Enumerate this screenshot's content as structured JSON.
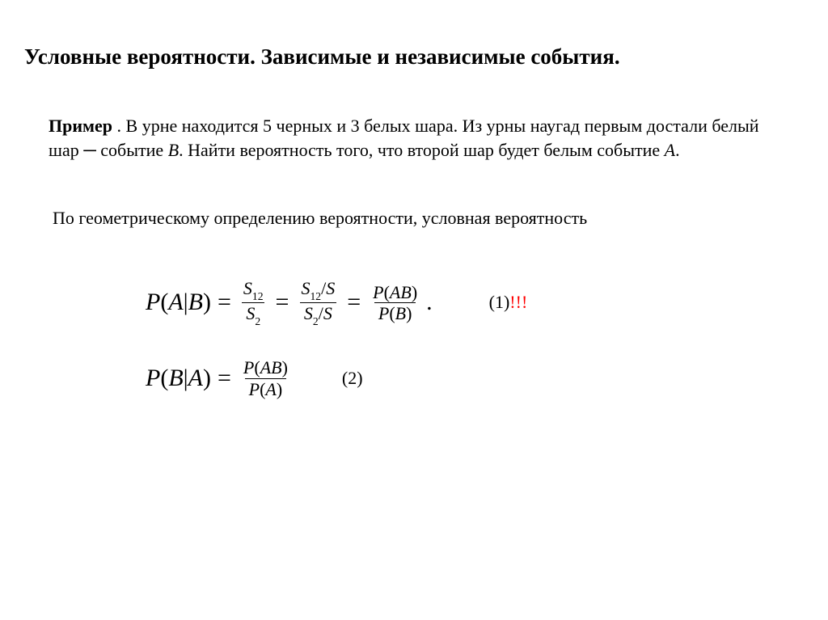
{
  "title": "Условные вероятности. Зависимые и независимые события.",
  "example_label": "Пример",
  "example_text_1": " . В урне находится 5 черных и 3 белых шара. Из урны наугад  первым достали белый шар ─ событие ",
  "example_B": "B",
  "example_text_2": ". Найти вероятность того, что второй шар будет белым событие ",
  "example_A": "A",
  "example_text_3": ".",
  "statement": "По геометрическому определению вероятности, условная вероятность",
  "formula1": {
    "lhs_P": "P",
    "lhs_open": "(",
    "lhs_A": "A",
    "lhs_bar": "|",
    "lhs_B": "B",
    "lhs_close": ")",
    "eq": "=",
    "f1_num": "S",
    "f1_num_sub": "12",
    "f1_den": "S",
    "f1_den_sub": "2",
    "f2_num_a": "S",
    "f2_num_a_sub": "12",
    "f2_num_sl": "/",
    "f2_num_b": "S",
    "f2_den_a": "S",
    "f2_den_a_sub": "2",
    "f2_den_sl": "/",
    "f2_den_b": "S",
    "f3_num_P": "P",
    "f3_num_o": "(",
    "f3_num_AB": "AB",
    "f3_num_c": ")",
    "f3_den_P": "P",
    "f3_den_o": "(",
    "f3_den_B": "B",
    "f3_den_c": ")",
    "dot": ".",
    "tag": "(1)",
    "marks": "!!!"
  },
  "formula2": {
    "lhs_P": "P",
    "lhs_open": "(",
    "lhs_B": "B",
    "lhs_bar": "|",
    "lhs_A": "A",
    "lhs_close": ")",
    "eq": "=",
    "num_P": "P",
    "num_o": "(",
    "num_AB": "AB",
    "num_c": ")",
    "den_P": "P",
    "den_o": "(",
    "den_A": "A",
    "den_c": ")",
    "tag": "(2)"
  },
  "colors": {
    "text": "#000000",
    "mark": "#ff0000",
    "background": "#ffffff"
  }
}
